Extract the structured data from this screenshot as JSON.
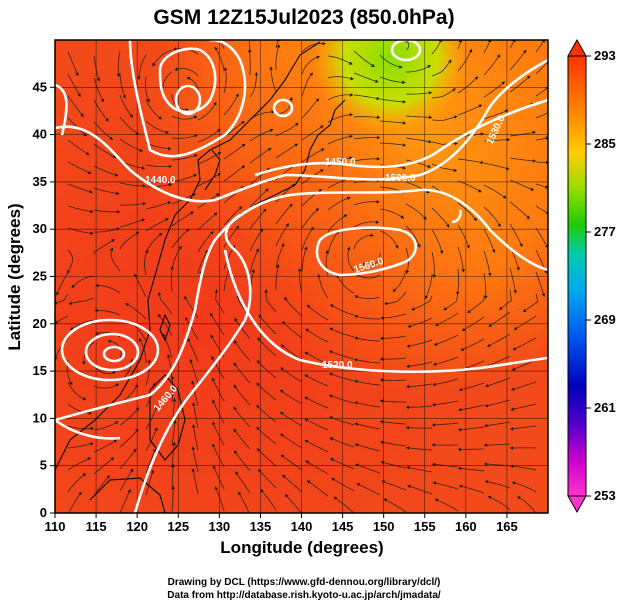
{
  "title": "GSM 12Z15Jul2023 (850.0hPa)",
  "xlabel": "Longitude (degrees)",
  "ylabel": "Latitude  (degrees)",
  "x_ticks": [
    "110",
    "115",
    "120",
    "125",
    "130",
    "135",
    "140",
    "145",
    "150",
    "155",
    "160",
    "165"
  ],
  "y_ticks": [
    "0",
    "5",
    "10",
    "15",
    "20",
    "25",
    "30",
    "35",
    "40",
    "45"
  ],
  "colorbar_ticks": [
    "293",
    "285",
    "277",
    "269",
    "261",
    "253"
  ],
  "contour_labels": [
    "1440.0",
    "1450.0",
    "1500.0",
    "1530.0",
    "1560.0",
    "1520.0",
    "1460.0",
    "1480.0"
  ],
  "credit_line1": "Drawing by DCL (https://www.gfd-dennou.org/library/dcl/)",
  "credit_line2": "Data from http://database.rish.kyoto-u.ac.jp/arch/jmadata/",
  "chart_data": {
    "type": "heatmap",
    "variable_range": [
      253,
      293
    ],
    "xlim": [
      110,
      170
    ],
    "ylim": [
      0,
      50
    ],
    "colors": {
      "high": "#ff3b00",
      "warm": "#ff8a00",
      "mid": "#22cc00",
      "cool": "#00aaee",
      "low": "#0000bb",
      "min": "#ff00cc"
    }
  }
}
